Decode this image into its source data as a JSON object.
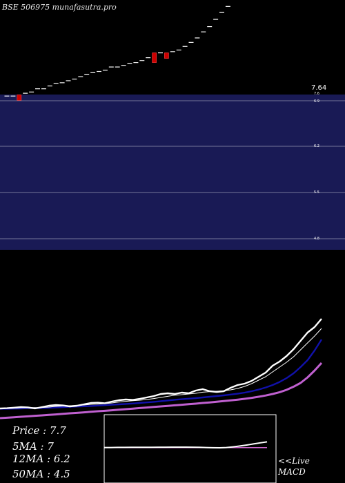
{
  "header": {
    "title": "BSE 506975 munafasutra.pro"
  },
  "colors": {
    "band": "#191a55",
    "band_line": "#ffffff",
    "candle_up": "#ffffff",
    "candle_down": "#cc0000",
    "price_line": "#ffffff",
    "ma5": "#ffffff",
    "ma12": "#1111aa",
    "ma50": "#c060d0",
    "macd": "#ffffff",
    "macd_signal": "#cc66cc",
    "macd_box": "#ffffff"
  },
  "legend": {
    "price": "Price   : 7.7",
    "ma5": "5MA : 7",
    "ma12": "12MA : 6.2",
    "ma50": "50MA : 4.5"
  },
  "macd_label": {
    "line1": "<<Live",
    "line2": "MACD"
  },
  "chart_data": {
    "type": "candlestick",
    "title": "BSE 506975 munafasutra.pro",
    "axis_labels": {
      "top": "7.64",
      "ticks": [
        "7.6",
        "6.9",
        "6.2",
        "5.5",
        "4.8"
      ]
    },
    "candles": {
      "open": [
        4.8,
        4.8,
        4.83,
        4.87,
        4.9,
        4.98,
        4.98,
        5.05,
        5.11,
        5.13,
        5.18,
        5.22,
        5.28,
        5.34,
        5.38,
        5.41,
        5.44,
        5.52,
        5.52,
        5.56,
        5.6,
        5.63,
        5.68,
        5.75,
        5.87,
        5.87,
        5.87,
        5.9,
        5.94,
        6.03,
        6.13,
        6.24,
        6.39,
        6.52,
        6.7,
        6.87,
        7.02,
        7.2,
        7.4,
        7.55,
        7.64
      ],
      "close": [
        4.8,
        4.8,
        4.75,
        4.87,
        4.9,
        4.98,
        4.98,
        5.05,
        5.11,
        5.13,
        5.18,
        5.22,
        5.28,
        5.34,
        5.38,
        5.41,
        5.44,
        5.52,
        5.52,
        5.56,
        5.6,
        5.63,
        5.68,
        5.75,
        5.63,
        5.87,
        5.78,
        5.9,
        5.94,
        6.03,
        6.13,
        6.24,
        6.39,
        6.52,
        6.7,
        6.87,
        7.02,
        7.2,
        7.4,
        7.55,
        7.64
      ]
    },
    "price_line": [
      1.2,
      1.22,
      1.26,
      1.3,
      1.28,
      1.2,
      1.3,
      1.4,
      1.45,
      1.42,
      1.35,
      1.4,
      1.5,
      1.6,
      1.62,
      1.58,
      1.7,
      1.8,
      1.85,
      1.82,
      1.9,
      2.0,
      2.1,
      2.25,
      2.3,
      2.25,
      2.35,
      2.3,
      2.5,
      2.6,
      2.45,
      2.4,
      2.45,
      2.7,
      2.9,
      3.0,
      3.2,
      3.5,
      3.8,
      4.3,
      4.6,
      5.0,
      5.5,
      6.1,
      6.7,
      7.1,
      7.7
    ],
    "ma5": [
      1.2,
      1.2,
      1.22,
      1.25,
      1.27,
      1.26,
      1.27,
      1.3,
      1.35,
      1.38,
      1.4,
      1.42,
      1.45,
      1.5,
      1.52,
      1.55,
      1.6,
      1.67,
      1.72,
      1.76,
      1.8,
      1.85,
      1.92,
      2.0,
      2.08,
      2.16,
      2.2,
      2.25,
      2.3,
      2.38,
      2.42,
      2.45,
      2.48,
      2.55,
      2.65,
      2.8,
      3.0,
      3.25,
      3.5,
      3.85,
      4.2,
      4.55,
      4.95,
      5.45,
      5.95,
      6.45,
      7.0
    ],
    "ma12": [
      1.18,
      1.18,
      1.19,
      1.2,
      1.22,
      1.22,
      1.23,
      1.25,
      1.27,
      1.3,
      1.32,
      1.34,
      1.36,
      1.38,
      1.41,
      1.44,
      1.47,
      1.5,
      1.53,
      1.56,
      1.6,
      1.64,
      1.68,
      1.73,
      1.78,
      1.83,
      1.87,
      1.91,
      1.95,
      2.0,
      2.05,
      2.1,
      2.15,
      2.21,
      2.27,
      2.35,
      2.45,
      2.57,
      2.72,
      2.9,
      3.12,
      3.4,
      3.75,
      4.2,
      4.7,
      5.4,
      6.2
    ],
    "ma50": [
      0.5,
      0.53,
      0.56,
      0.6,
      0.63,
      0.67,
      0.7,
      0.74,
      0.77,
      0.81,
      0.85,
      0.88,
      0.92,
      0.96,
      1.0,
      1.03,
      1.07,
      1.11,
      1.15,
      1.19,
      1.23,
      1.27,
      1.31,
      1.35,
      1.39,
      1.43,
      1.47,
      1.51,
      1.55,
      1.6,
      1.64,
      1.69,
      1.74,
      1.79,
      1.84,
      1.9,
      1.97,
      2.05,
      2.14,
      2.25,
      2.38,
      2.55,
      2.78,
      3.05,
      3.45,
      3.95,
      4.5
    ],
    "macd": {
      "macd": [
        0.12,
        0.12,
        0.13,
        0.13,
        0.14,
        0.14,
        0.15,
        0.15,
        0.16,
        0.16,
        0.17,
        0.17,
        0.17,
        0.16,
        0.15,
        0.12,
        0.09,
        0.08,
        0.12,
        0.2,
        0.3,
        0.42,
        0.55,
        0.68,
        0.8
      ],
      "signal": [
        0.1,
        0.1,
        0.1,
        0.1,
        0.1,
        0.1,
        0.1,
        0.1,
        0.1,
        0.1,
        0.1,
        0.1,
        0.1,
        0.1,
        0.1,
        0.1,
        0.1,
        0.1,
        0.1,
        0.1,
        0.1,
        0.1,
        0.1,
        0.1,
        0.1
      ]
    },
    "legend_placement": "bottom-left"
  }
}
